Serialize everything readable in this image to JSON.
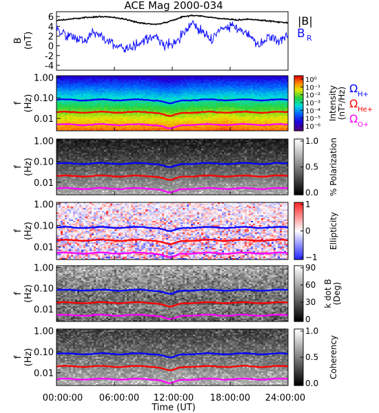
{
  "title": "ACE Mag 2000-034",
  "colors": {
    "total_field": "#000000",
    "radial_field": "#1010ff",
    "h_plus": "#0000ff",
    "he_plus": "#ff0000",
    "o_plus": "#ff00ff"
  },
  "x_axis": {
    "label": "Time (UT)",
    "ticks": [
      "00:00:00",
      "06:00:00",
      "12:00:00",
      "18:00:00",
      "24:00:00"
    ],
    "range_hours": [
      0,
      24
    ]
  },
  "chart_data": [
    {
      "type": "line",
      "ylabel": [
        "B",
        "(nT)"
      ],
      "ylim": [
        -5,
        7
      ],
      "yticks": [
        -4,
        -2,
        0,
        2,
        4,
        6
      ],
      "legend": [
        "|B|",
        "B",
        "R"
      ],
      "series": [
        {
          "name": "|B|",
          "x_hours": [
            0,
            1,
            2,
            3,
            4,
            5,
            6,
            7,
            8,
            9,
            10,
            11,
            12,
            13,
            14,
            15,
            16,
            17,
            18,
            19,
            20,
            21,
            22,
            23,
            24
          ],
          "values": [
            5.2,
            5.4,
            5.6,
            5.8,
            5.9,
            6.0,
            5.8,
            5.5,
            5.0,
            4.6,
            4.4,
            4.6,
            5.2,
            5.9,
            6.2,
            6.1,
            5.8,
            5.6,
            5.4,
            5.3,
            5.5,
            5.3,
            5.1,
            4.9,
            4.7
          ]
        },
        {
          "name": "B",
          "x_hours": [
            0,
            1,
            2,
            3,
            4,
            5,
            6,
            7,
            8,
            9,
            10,
            11,
            12,
            13,
            14,
            15,
            16,
            17,
            18,
            19,
            20,
            21,
            22,
            23,
            24
          ],
          "values": [
            3.5,
            2.0,
            1.5,
            1.0,
            3.0,
            1.0,
            0.5,
            -1.0,
            0.0,
            1.0,
            2.0,
            0.5,
            0.0,
            2.0,
            4.5,
            3.0,
            1.0,
            3.5,
            4.0,
            3.0,
            2.5,
            0.0,
            2.0,
            1.0,
            2.0
          ]
        }
      ]
    },
    {
      "type": "heatmap",
      "ylabel": [
        "f",
        "(Hz)"
      ],
      "yticks": [
        "1.00",
        "0.10",
        "0.01"
      ],
      "colorbar": {
        "label": [
          "Intensity",
          "(nT²/Hz)"
        ],
        "scale": "log",
        "range": [
          1e-07,
          1
        ],
        "ticks": [
          "10⁰",
          "10⁻¹",
          "10⁻²",
          "10⁻³",
          "10⁻⁴",
          "10⁻⁵",
          "10⁻⁶"
        ]
      },
      "legend": [
        {
          "symbol": "Ω",
          "sub": "H+"
        },
        {
          "symbol": "Ω",
          "sub": "He+"
        },
        {
          "symbol": "Ω",
          "sub": "O+"
        }
      ],
      "gyrofrequency_hz": {
        "H+": {
          "typical": 0.08,
          "min": 0.05
        },
        "He+": {
          "typical": 0.02,
          "min": 0.012
        },
        "O+": {
          "typical": 0.005,
          "min": 0.003
        }
      }
    },
    {
      "type": "heatmap",
      "ylabel": [
        "f",
        "(Hz)"
      ],
      "yticks": [
        "1.00",
        "0.10",
        "0.01"
      ],
      "colorbar": {
        "label": [
          "% Polarization"
        ],
        "range": [
          0,
          1
        ],
        "ticks": [
          "1.0",
          "0.5",
          "0.0"
        ]
      }
    },
    {
      "type": "heatmap",
      "ylabel": [
        "f",
        "(Hz)"
      ],
      "yticks": [
        "1.00",
        "0.10",
        "0.01"
      ],
      "colorbar": {
        "label": [
          "Ellipticity"
        ],
        "range": [
          -1,
          1
        ],
        "ticks": [
          "1",
          "0",
          "−1"
        ]
      }
    },
    {
      "type": "heatmap",
      "ylabel": [
        "f",
        "(Hz)"
      ],
      "yticks": [
        "1.00",
        "0.10",
        "0.01"
      ],
      "colorbar": {
        "label": [
          "k dot B",
          "(Deg)"
        ],
        "range": [
          0,
          90
        ],
        "ticks": [
          "90",
          "60",
          "30",
          "0"
        ]
      }
    },
    {
      "type": "heatmap",
      "ylabel": [
        "f",
        "(Hz)"
      ],
      "yticks": [
        "1.00",
        "0.10",
        "0.01"
      ],
      "colorbar": {
        "label": [
          "Coherency"
        ],
        "range": [
          0,
          1
        ],
        "ticks": [
          "1.0",
          "0.5",
          "0.0"
        ]
      }
    }
  ]
}
